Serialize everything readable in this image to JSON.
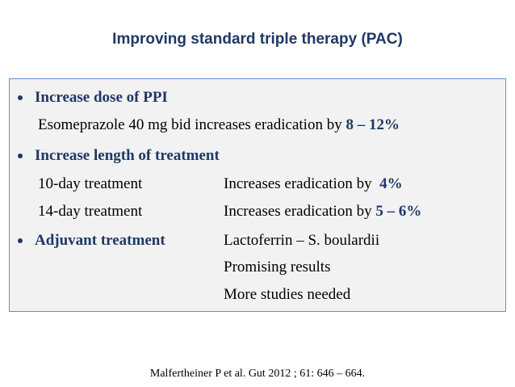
{
  "title": "Improving standard triple therapy (PAC)",
  "sections": [
    {
      "heading": "Increase dose of PPI",
      "rows": [
        {
          "text": "Esomeprazole 40 mg bid increases eradication by",
          "value": "8 – 12%"
        }
      ]
    },
    {
      "heading": "Increase length of treatment",
      "rows": [
        {
          "label": "10-day treatment",
          "text": "Increases eradication by",
          "value": "4%"
        },
        {
          "label": "14-day treatment",
          "text": "Increases eradication by",
          "value": "5 – 6%"
        }
      ]
    },
    {
      "heading": "Adjuvant treatment",
      "notes": [
        "Lactoferrin – S. boulardii",
        "Promising results",
        "More studies needed"
      ]
    }
  ],
  "citation": "Malfertheiner P et al. Gut 2012 ; 61: 646 – 664."
}
